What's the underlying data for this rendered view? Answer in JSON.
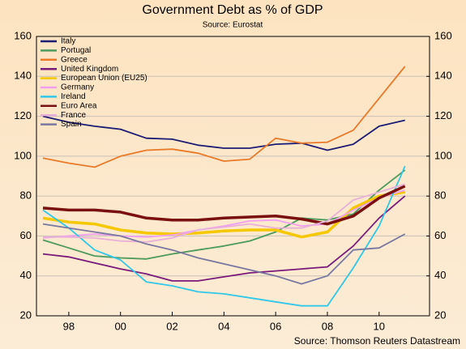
{
  "chart_data": {
    "type": "line",
    "title": "Government Debt as % of GDP",
    "subtitle": "Source: Eurostat",
    "source": "Source: Thomson Reuters Datastream",
    "x": [
      1997,
      1998,
      1999,
      2000,
      2001,
      2002,
      2003,
      2004,
      2005,
      2006,
      2007,
      2008,
      2009,
      2010,
      2011
    ],
    "xlim": [
      1996.75,
      2011.95
    ],
    "xticks": [
      {
        "value": 1998,
        "label": "98"
      },
      {
        "value": 2000,
        "label": "00"
      },
      {
        "value": 2002,
        "label": "02"
      },
      {
        "value": 2004,
        "label": "04"
      },
      {
        "value": 2006,
        "label": "06"
      },
      {
        "value": 2008,
        "label": "08"
      },
      {
        "value": 2010,
        "label": "10"
      }
    ],
    "ylim": [
      20,
      160
    ],
    "yticks": [
      20,
      40,
      60,
      80,
      100,
      120,
      140,
      160
    ],
    "y2lim": [
      20,
      160
    ],
    "y2ticks": [
      20,
      40,
      60,
      80,
      100,
      120,
      140,
      160
    ],
    "grid": true,
    "legend": "top-left",
    "series": [
      {
        "name": "Italy",
        "color": "#1c1c74",
        "values": [
          120,
          117,
          115,
          113.5,
          109,
          108.5,
          105.5,
          104,
          104,
          106,
          106.5,
          103,
          106,
          115,
          118
        ]
      },
      {
        "name": "Portugal",
        "color": "#4c9a5c",
        "values": [
          58,
          54,
          50,
          49,
          48.5,
          51,
          53,
          55,
          57.5,
          62,
          69,
          68,
          71,
          83,
          93
        ]
      },
      {
        "name": "Greece",
        "color": "#e87a2a",
        "values": [
          99,
          96.5,
          94.5,
          100,
          103,
          103.5,
          101.5,
          97.5,
          98.5,
          109,
          106.5,
          107,
          113,
          129,
          145
        ]
      },
      {
        "name": "United Kingdom",
        "color": "#7a1a7a",
        "values": [
          51,
          49.5,
          46.5,
          43.5,
          41,
          37.5,
          37.5,
          39.5,
          41.5,
          42.5,
          43.5,
          44.5,
          55,
          69,
          80
        ]
      },
      {
        "name": "European Union (EU25)",
        "color": "#f5c800",
        "values": [
          69,
          67,
          66,
          63,
          61.5,
          61,
          61.5,
          62.5,
          63,
          63,
          59.5,
          62,
          74,
          80,
          82
        ]
      },
      {
        "name": "Germany",
        "color": "#f0a0f0",
        "values": [
          59,
          60,
          61,
          60,
          59.5,
          60.5,
          63,
          65,
          67.5,
          68,
          65,
          66,
          73,
          79,
          83
        ]
      },
      {
        "name": "Ireland",
        "color": "#30c8e8",
        "values": [
          73,
          64,
          53,
          48,
          37,
          35,
          32,
          31,
          29,
          27,
          25,
          25,
          44,
          65,
          95
        ]
      },
      {
        "name": "Euro Area",
        "color": "#7a1010",
        "values": [
          74,
          73,
          73,
          72,
          69,
          68,
          68,
          69,
          69.5,
          70,
          68.5,
          66,
          70,
          79,
          85
        ]
      },
      {
        "name": "France",
        "color": "#e8b0d8",
        "values": [
          59.5,
          59.5,
          59,
          57.5,
          57,
          59,
          63,
          64.5,
          66,
          64,
          64,
          67.5,
          78,
          82,
          86
        ]
      },
      {
        "name": "Spain",
        "color": "#7878a0",
        "values": [
          66,
          64,
          62,
          60,
          56,
          53,
          49,
          46,
          43,
          40,
          36,
          40,
          53,
          54,
          61
        ]
      }
    ]
  }
}
